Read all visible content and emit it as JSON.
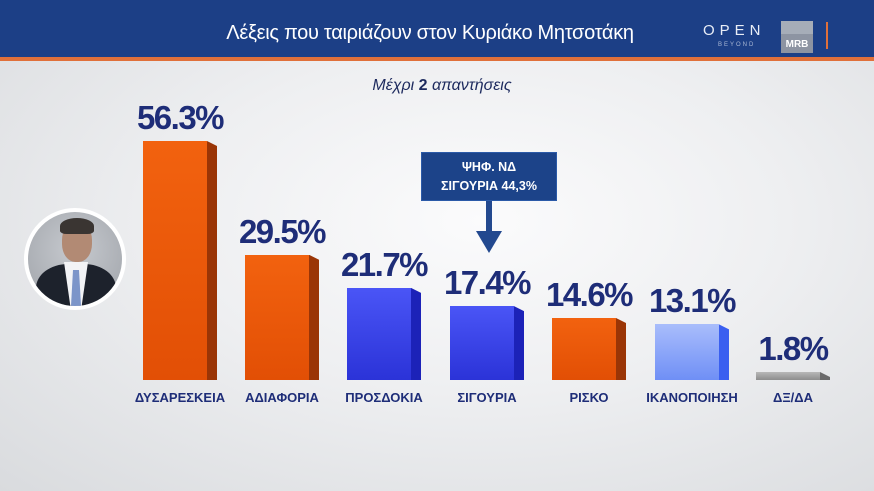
{
  "header": {
    "title": "Λέξεις που ταιριάζουν στον Κυριάκο Μητσοτάκη",
    "logo_open": "OPEN",
    "logo_beyond": "BEYOND",
    "logo_mrb": "MRB"
  },
  "subtitle": {
    "pre": "Μέχρι ",
    "bold": "2",
    "post": " απαντήσεις"
  },
  "callout": {
    "line1": "ΨΗΦ. ΝΔ",
    "line2": "ΣΙΓΟΥΡΙΑ 44,3%"
  },
  "colors": {
    "header_bg": "#1c3f86",
    "accent_line": "#e0703a",
    "orange": "#f05a0a",
    "blue": "#3a45f0",
    "light_blue": "#7e9cf8",
    "gray": "#9a9a9a",
    "text": "#1e2d78"
  },
  "chart_data": {
    "type": "bar",
    "title": "Λέξεις που ταιριάζουν στον Κυριάκο Μητσοτάκη",
    "subtitle": "Μέχρι 2 απαντήσεις",
    "categories": [
      "ΔΥΣΑΡΕΣΚΕΙΑ",
      "ΑΔΙΑΦΟΡΙΑ",
      "ΠΡΟΣΔΟΚΙΑ",
      "ΣΙΓΟΥΡΙΑ",
      "ΡΙΣΚΟ",
      "ΙΚΑΝΟΠΟΙΗΣΗ",
      "ΔΞ/ΔΑ"
    ],
    "values": [
      56.3,
      29.5,
      21.7,
      17.4,
      14.6,
      13.1,
      1.8
    ],
    "labels": [
      "56.3%",
      "29.5%",
      "21.7%",
      "17.4%",
      "14.6%",
      "13.1%",
      "1.8%"
    ],
    "bar_colors": [
      "orange",
      "orange",
      "blue",
      "blue",
      "orange",
      "light_blue",
      "gray"
    ],
    "annotations": [
      {
        "category": "ΣΙΓΟΥΡΙΑ",
        "text": "ΨΗΦ. ΝΔ ΣΙΓΟΥΡΙΑ 44,3%"
      }
    ],
    "xlabel": "",
    "ylabel": "",
    "ylim": [
      0,
      60
    ],
    "grid": false,
    "legend": "none",
    "unit": "%"
  }
}
